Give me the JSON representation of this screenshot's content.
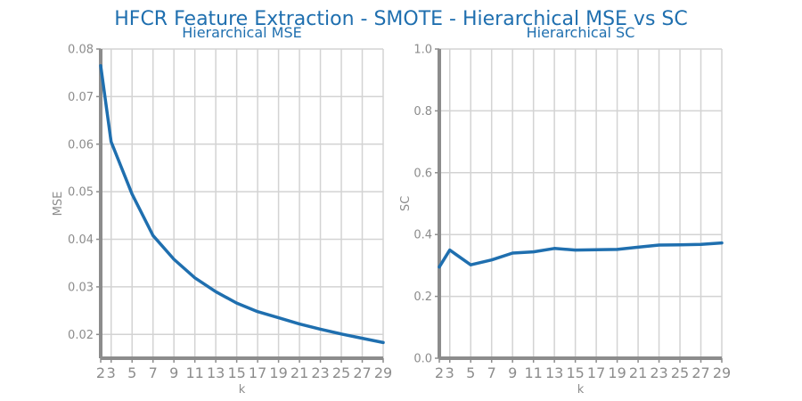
{
  "suptitle": "HFCR Feature Extraction - SMOTE - Hierarchical MSE vs SC",
  "colors": {
    "line": "#1f6faf",
    "title": "#1f6faf",
    "grid": "#d3d3d3",
    "axis": "#8c8c8c"
  },
  "chart_data": [
    {
      "type": "line",
      "title": "Hierarchical MSE",
      "xlabel": "k",
      "ylabel": "MSE",
      "grid": true,
      "xlim": [
        2,
        29
      ],
      "ylim": [
        0.015,
        0.08
      ],
      "xticks": [
        2,
        3,
        5,
        7,
        9,
        11,
        13,
        15,
        17,
        19,
        21,
        23,
        25,
        27,
        29
      ],
      "yticks": [
        0.02,
        0.03,
        0.04,
        0.05,
        0.06,
        0.07,
        0.08
      ],
      "ytick_labels": [
        "0.02",
        "0.03",
        "0.04",
        "0.05",
        "0.06",
        "0.07",
        "0.08"
      ],
      "x": [
        2,
        3,
        5,
        7,
        9,
        11,
        13,
        15,
        17,
        19,
        21,
        23,
        25,
        27,
        29
      ],
      "y": [
        0.0765,
        0.0605,
        0.0495,
        0.0408,
        0.0358,
        0.0319,
        0.029,
        0.0266,
        0.0248,
        0.0235,
        0.0222,
        0.0211,
        0.0201,
        0.0192,
        0.0183
      ]
    },
    {
      "type": "line",
      "title": "Hierarchical SC",
      "xlabel": "k",
      "ylabel": "SC",
      "grid": true,
      "xlim": [
        2,
        29
      ],
      "ylim": [
        0,
        1
      ],
      "xticks": [
        2,
        3,
        5,
        7,
        9,
        11,
        13,
        15,
        17,
        19,
        21,
        23,
        25,
        27,
        29
      ],
      "yticks": [
        0,
        0.2,
        0.4,
        0.6,
        0.8,
        1.0
      ],
      "ytick_labels": [
        "0.0",
        "0.2",
        "0.4",
        "0.6",
        "0.8",
        "1.0"
      ],
      "x": [
        2,
        3,
        5,
        7,
        9,
        11,
        13,
        15,
        17,
        19,
        21,
        23,
        25,
        27,
        29
      ],
      "y": [
        0.295,
        0.35,
        0.302,
        0.318,
        0.34,
        0.344,
        0.355,
        0.35,
        0.351,
        0.352,
        0.359,
        0.366,
        0.367,
        0.368,
        0.373
      ]
    }
  ]
}
